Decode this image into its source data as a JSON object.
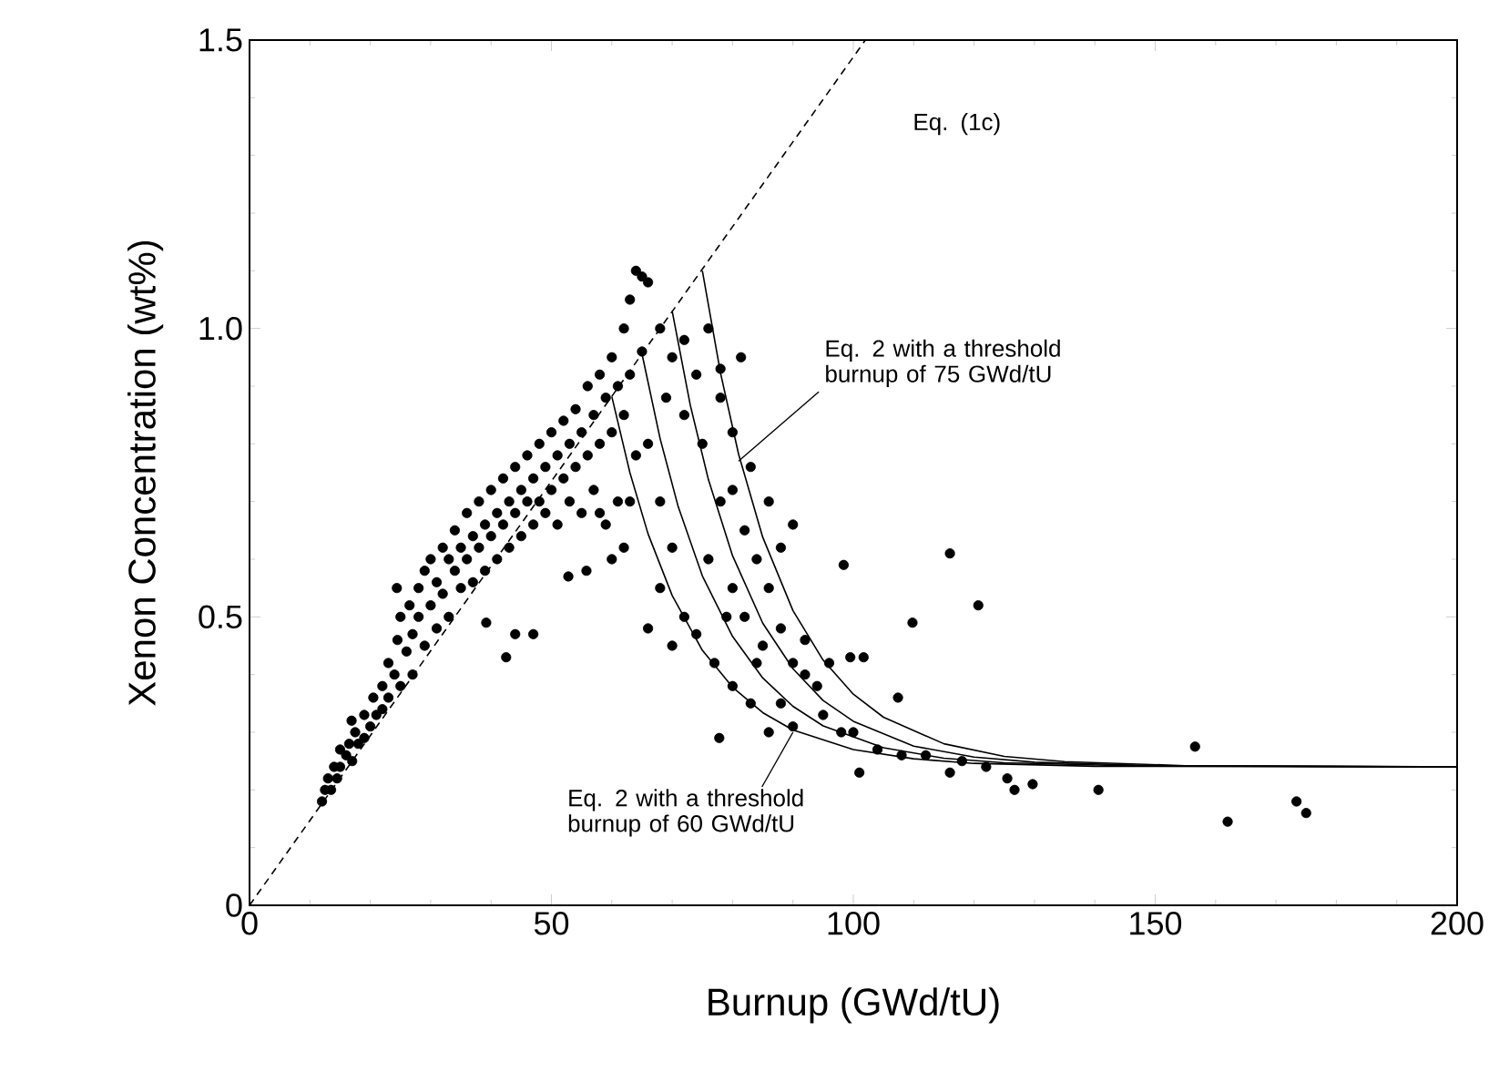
{
  "chart_data": {
    "type": "scatter",
    "xlabel": "Burnup (GWd/tU)",
    "ylabel": "Xenon Concentration (wt%)",
    "xlim": [
      0,
      200
    ],
    "ylim": [
      0,
      1.5
    ],
    "xticks": [
      0,
      50,
      100,
      150,
      200
    ],
    "yticks": [
      0,
      0.5,
      {
        "value": 1,
        "label": "1.0"
      },
      1.5
    ],
    "annotations": [
      "Eq. (1c)",
      {
        "text": "Eq. 2 with a threshold burnup of 75 GWd/tU",
        "x": 81,
        "y": 0.77
      },
      {
        "text": "Eq. 2 with a threshold burnup of 60 GWd/tU",
        "x": 90,
        "y": 0.3
      }
    ],
    "series": [
      {
        "color": "#000000",
        "marker": "circle",
        "x": [
          12,
          12.5,
          13,
          13.5,
          14,
          14.5,
          15,
          15,
          16,
          16.5,
          17,
          17.5,
          18,
          19,
          19,
          20,
          20.5,
          21,
          22,
          22,
          23,
          23,
          24,
          24.5,
          25,
          25,
          26,
          26.5,
          27,
          27,
          28,
          28,
          29,
          29,
          30,
          30,
          31,
          31,
          32,
          32,
          33,
          33,
          34,
          34,
          35,
          35,
          36,
          36,
          37,
          37,
          38,
          38,
          39,
          39,
          40,
          40,
          41,
          41,
          42,
          42,
          43,
          43,
          44,
          44,
          45,
          45,
          46,
          46,
          47,
          47,
          48,
          48,
          49,
          49,
          50,
          50,
          51,
          51,
          52,
          52,
          53,
          53,
          54,
          54,
          55,
          55,
          56,
          56,
          57,
          57,
          58,
          58,
          59,
          59,
          60,
          60,
          61,
          61,
          62,
          62,
          63,
          63,
          64,
          64,
          65,
          66,
          65,
          62,
          60,
          58,
          63,
          24.4,
          42.5,
          44,
          47,
          39.2,
          52.8,
          55.8,
          16.9,
          68,
          70,
          72,
          74,
          76,
          78,
          72,
          75,
          80,
          82,
          78,
          76,
          80,
          84,
          86,
          88,
          85,
          90,
          92,
          94,
          88,
          95,
          98,
          100,
          104,
          108,
          112,
          118,
          122,
          70,
          68,
          72,
          74,
          66,
          70,
          77,
          80,
          83,
          86,
          90,
          68,
          66,
          69,
          82,
          84,
          79,
          92,
          96,
          88,
          86,
          83,
          80,
          78,
          81.4,
          90,
          98.4,
          116,
          120.7,
          109.8,
          99.5,
          101.7,
          107.4,
          77.8,
          101,
          116,
          125.5,
          126.7,
          129.7,
          140.6,
          156.6,
          162,
          173.4,
          175
        ],
        "values": [
          0.18,
          0.2,
          0.22,
          0.2,
          0.24,
          0.22,
          0.27,
          0.24,
          0.26,
          0.28,
          0.25,
          0.3,
          0.28,
          0.33,
          0.29,
          0.31,
          0.36,
          0.33,
          0.38,
          0.34,
          0.42,
          0.36,
          0.4,
          0.46,
          0.38,
          0.5,
          0.44,
          0.52,
          0.47,
          0.4,
          0.55,
          0.5,
          0.45,
          0.58,
          0.52,
          0.6,
          0.48,
          0.56,
          0.62,
          0.54,
          0.6,
          0.5,
          0.65,
          0.58,
          0.62,
          0.55,
          0.68,
          0.6,
          0.64,
          0.56,
          0.7,
          0.62,
          0.66,
          0.58,
          0.72,
          0.64,
          0.68,
          0.6,
          0.74,
          0.66,
          0.7,
          0.62,
          0.76,
          0.68,
          0.72,
          0.64,
          0.78,
          0.7,
          0.74,
          0.66,
          0.8,
          0.7,
          0.76,
          0.68,
          0.82,
          0.72,
          0.78,
          0.66,
          0.84,
          0.74,
          0.8,
          0.7,
          0.86,
          0.76,
          0.82,
          0.68,
          0.9,
          0.78,
          0.85,
          0.72,
          0.92,
          0.8,
          0.88,
          0.66,
          0.95,
          0.82,
          0.9,
          0.7,
          1.0,
          0.85,
          1.05,
          0.92,
          1.1,
          0.78,
          1.09,
          1.08,
          0.96,
          0.62,
          0.6,
          0.68,
          0.7,
          0.55,
          0.43,
          0.47,
          0.47,
          0.49,
          0.57,
          0.58,
          0.32,
          1.0,
          0.95,
          0.98,
          0.92,
          1.0,
          0.88,
          0.85,
          0.8,
          0.72,
          0.65,
          0.7,
          0.6,
          0.55,
          0.6,
          0.55,
          0.48,
          0.45,
          0.42,
          0.4,
          0.38,
          0.35,
          0.33,
          0.3,
          0.3,
          0.27,
          0.26,
          0.26,
          0.25,
          0.24,
          0.62,
          0.55,
          0.5,
          0.47,
          0.48,
          0.45,
          0.42,
          0.38,
          0.35,
          0.3,
          0.31,
          0.7,
          0.8,
          0.88,
          0.5,
          0.42,
          0.5,
          0.46,
          0.42,
          0.62,
          0.7,
          0.76,
          0.82,
          0.93,
          0.95,
          0.66,
          0.59,
          0.61,
          0.52,
          0.49,
          0.43,
          0.43,
          0.36,
          0.29,
          0.23,
          0.23,
          0.22,
          0.2,
          0.21,
          0.2,
          0.275,
          0.145,
          0.18,
          0.16
        ]
      },
      {
        "type": "line",
        "color": "#000000",
        "line_style": "dashed",
        "x": [
          0,
          102
        ],
        "values": [
          0,
          1.5
        ]
      },
      {
        "type": "line",
        "color": "#000000",
        "line_style": "solid",
        "x": [
          75,
          78,
          81,
          85,
          90,
          95,
          100,
          105,
          115,
          125,
          135,
          155,
          200
        ],
        "values": [
          1.1,
          0.923,
          0.782,
          0.638,
          0.511,
          0.425,
          0.366,
          0.326,
          0.28,
          0.258,
          0.249,
          0.242,
          0.24
        ]
      },
      {
        "type": "line",
        "color": "#000000",
        "line_style": "solid",
        "x": [
          70,
          73,
          76,
          80,
          85,
          90,
          95,
          100,
          110,
          120,
          130,
          150,
          200
        ],
        "values": [
          1.03,
          0.867,
          0.738,
          0.606,
          0.489,
          0.41,
          0.355,
          0.319,
          0.276,
          0.257,
          0.248,
          0.242,
          0.24
        ]
      },
      {
        "type": "line",
        "color": "#000000",
        "line_style": "solid",
        "x": [
          65,
          68,
          71,
          75,
          80,
          85,
          90,
          95,
          105,
          115,
          125,
          145,
          200
        ],
        "values": [
          0.956,
          0.809,
          0.691,
          0.571,
          0.466,
          0.394,
          0.345,
          0.311,
          0.273,
          0.255,
          0.247,
          0.242,
          0.24
        ]
      },
      {
        "type": "line",
        "color": "#000000",
        "line_style": "solid",
        "x": [
          60,
          63,
          66,
          70,
          75,
          80,
          85,
          90,
          100,
          110,
          120,
          140,
          200
        ],
        "values": [
          0.882,
          0.75,
          0.644,
          0.537,
          0.442,
          0.378,
          0.334,
          0.304,
          0.27,
          0.254,
          0.246,
          0.241,
          0.24
        ]
      }
    ]
  }
}
